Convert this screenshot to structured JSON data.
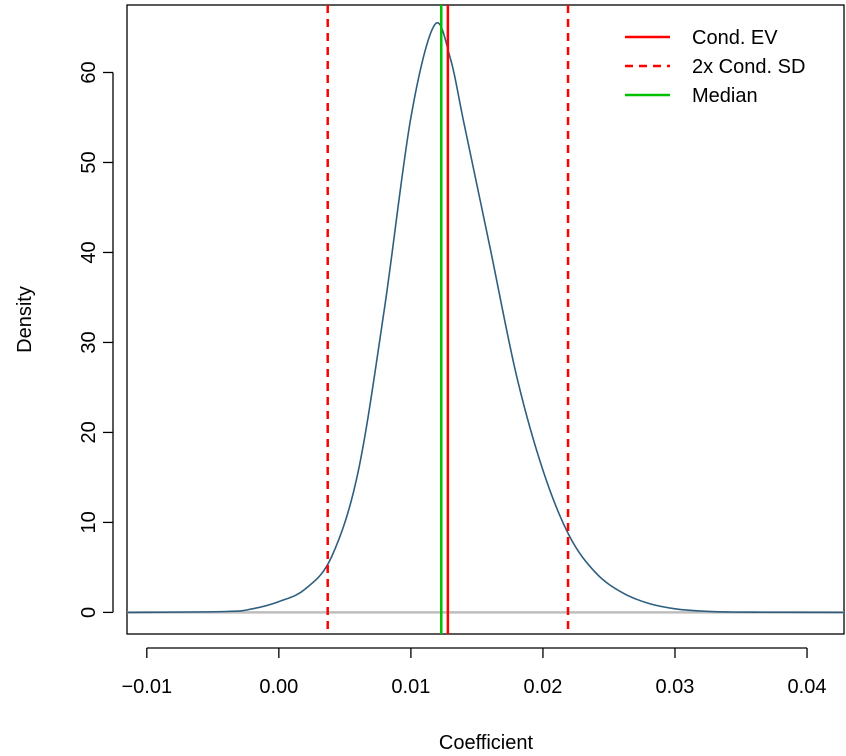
{
  "chart_data": {
    "type": "line",
    "xlabel": "Coefficient",
    "ylabel": "Density",
    "xlim": [
      -0.0115,
      0.0428
    ],
    "ylim": [
      -2.4,
      67.5
    ],
    "x_ticks": [
      -0.01,
      0.0,
      0.01,
      0.02,
      0.03,
      0.04
    ],
    "x_tick_labels": [
      "−0.01",
      "0.00",
      "0.01",
      "0.02",
      "0.03",
      "0.04"
    ],
    "y_ticks": [
      0,
      10,
      20,
      30,
      40,
      50,
      60
    ],
    "y_tick_labels": [
      "0",
      "10",
      "20",
      "30",
      "40",
      "50",
      "60"
    ],
    "grid": false,
    "legend": {
      "position": "top-right",
      "entries": [
        {
          "label": "Cond. EV",
          "color": "#ff0000",
          "style": "solid"
        },
        {
          "label": "2x Cond. SD",
          "color": "#ff0000",
          "style": "dashed"
        },
        {
          "label": "Median",
          "color": "#00c000",
          "style": "solid"
        }
      ]
    },
    "density_curve": {
      "color": "#2f5f7f",
      "x": [
        -0.0115,
        -0.004,
        -0.002,
        0.0,
        0.002,
        0.004,
        0.006,
        0.008,
        0.01,
        0.0118,
        0.013,
        0.014,
        0.016,
        0.018,
        0.02,
        0.022,
        0.024,
        0.026,
        0.028,
        0.03,
        0.032,
        0.034,
        0.036,
        0.0428
      ],
      "y": [
        0.0,
        0.1,
        0.4,
        1.2,
        2.6,
        6.2,
        15.6,
        33.8,
        55.0,
        65.3,
        61.5,
        54.5,
        40.5,
        26.3,
        15.8,
        8.5,
        4.4,
        2.2,
        1.0,
        0.4,
        0.15,
        0.05,
        0.02,
        0.0
      ]
    },
    "baseline": {
      "y": 0,
      "color": "#bebebe"
    },
    "vertical_lines": [
      {
        "name": "Cond. EV",
        "x": 0.0128,
        "color": "#ff0000",
        "style": "solid"
      },
      {
        "name": "2x Cond. SD lower",
        "x": 0.0037,
        "color": "#ff0000",
        "style": "dashed"
      },
      {
        "name": "2x Cond. SD upper",
        "x": 0.0219,
        "color": "#ff0000",
        "style": "dashed"
      },
      {
        "name": "Median",
        "x": 0.0123,
        "color": "#00c000",
        "style": "solid"
      }
    ]
  }
}
